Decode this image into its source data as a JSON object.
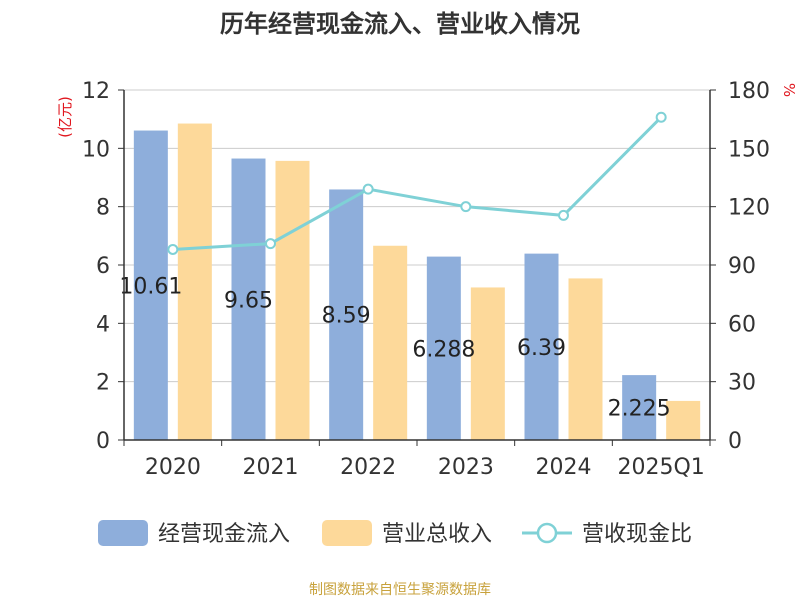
{
  "title": "历年经营现金流入、营业收入情况",
  "source": "制图数据来自恒生聚源数据库",
  "chart_data": {
    "type": "bar",
    "categories": [
      "2020",
      "2021",
      "2022",
      "2023",
      "2024",
      "2025Q1"
    ],
    "y_left": {
      "unit_label": "(亿元)",
      "min": 0,
      "max": 12,
      "ticks": [
        0,
        2,
        4,
        6,
        8,
        10,
        12
      ]
    },
    "y_right": {
      "unit_label": "%",
      "min": 0,
      "max": 180,
      "ticks": [
        0,
        30,
        60,
        90,
        120,
        150,
        180
      ]
    },
    "grid": true,
    "legend_position": "bottom",
    "series": [
      {
        "name": "经营现金流入",
        "type": "bar",
        "axis": "left",
        "color": "#8eaedb",
        "values": [
          10.61,
          9.65,
          8.59,
          6.288,
          6.39,
          2.225
        ],
        "labels": [
          "10.61",
          "9.65",
          "8.59",
          "6.288",
          "6.39",
          "2.225"
        ]
      },
      {
        "name": "营业总收入",
        "type": "bar",
        "axis": "left",
        "color": "#fdd99a",
        "values": [
          10.85,
          9.57,
          6.66,
          5.23,
          5.54,
          1.34
        ]
      },
      {
        "name": "营收现金比",
        "type": "line",
        "axis": "right",
        "color": "#7fd1d6",
        "values": [
          98.0,
          101.0,
          129.0,
          120.0,
          115.5,
          166.0
        ]
      }
    ]
  }
}
